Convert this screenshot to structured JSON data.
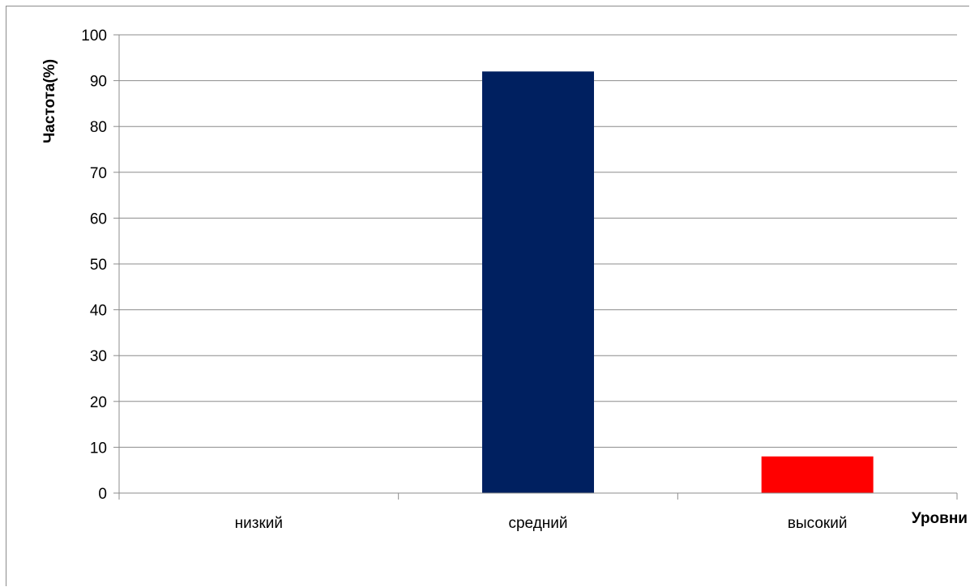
{
  "chart_data": {
    "type": "bar",
    "categories": [
      "низкий",
      "средний",
      "высокий"
    ],
    "values": [
      0,
      92,
      8
    ],
    "colors": [
      "#002060",
      "#002060",
      "#ff0000"
    ],
    "title": "",
    "xlabel": "Уровни",
    "ylabel": "Частота(%)",
    "ylim": [
      0,
      100
    ],
    "ytick_step": 10,
    "grid": true,
    "legend": "none"
  }
}
